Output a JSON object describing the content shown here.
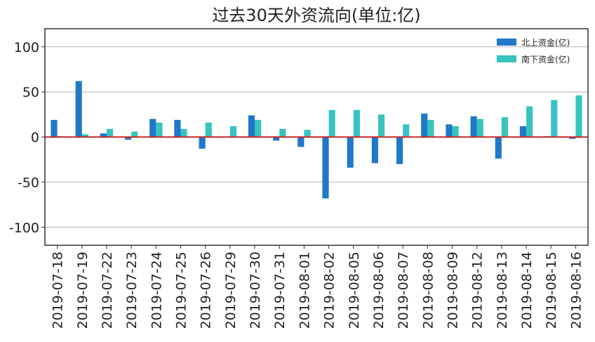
{
  "chart_data": {
    "type": "bar",
    "title": "过去30天外资流向(单位:亿)",
    "xlabel": "",
    "ylabel": "",
    "ylim": [
      -120,
      120
    ],
    "yticks": [
      100,
      50,
      0,
      -50,
      -100
    ],
    "grid": true,
    "legend_position": "top-right",
    "categories": [
      "2019-07-18",
      "2019-07-19",
      "2019-07-22",
      "2019-07-23",
      "2019-07-24",
      "2019-07-25",
      "2019-07-26",
      "2019-07-29",
      "2019-07-30",
      "2019-07-31",
      "2019-08-01",
      "2019-08-02",
      "2019-08-05",
      "2019-08-06",
      "2019-08-07",
      "2019-08-08",
      "2019-08-09",
      "2019-08-12",
      "2019-08-13",
      "2019-08-14",
      "2019-08-15",
      "2019-08-16"
    ],
    "series": [
      {
        "name": "北上资金(亿)",
        "color": "#1f78c8",
        "values": [
          19,
          62,
          4,
          -3,
          20,
          19,
          -13,
          0,
          24,
          -4,
          -11,
          -68,
          -34,
          -29,
          -30,
          26,
          14,
          23,
          -24,
          12,
          1,
          -2
        ]
      },
      {
        "name": "南下资金(亿)",
        "color": "#37c4c0",
        "values": [
          1,
          3,
          9,
          6,
          16,
          9,
          16,
          12,
          19,
          9,
          8,
          30,
          30,
          25,
          14,
          19,
          12,
          20,
          22,
          34,
          41,
          46
        ]
      }
    ],
    "zero_line_color": "#cc2222"
  }
}
